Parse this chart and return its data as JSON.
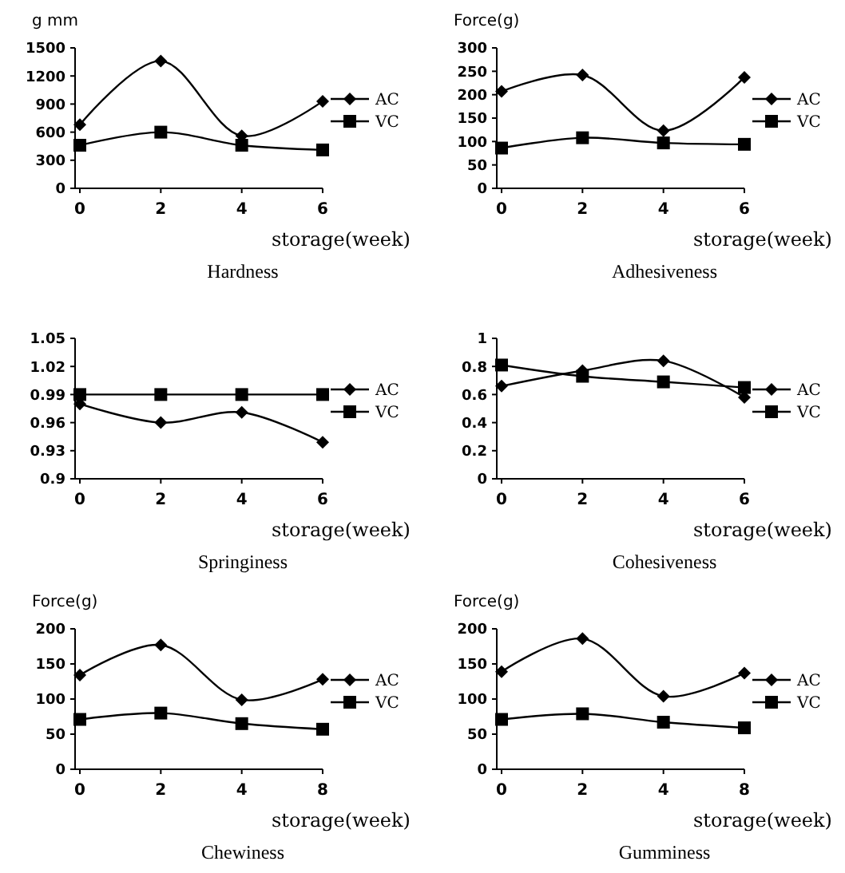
{
  "chart_data": [
    {
      "type": "line",
      "title": "Hardness",
      "xlabel": "storage(week)",
      "ylabel": "g mm",
      "categories": [
        "0",
        "2",
        "4",
        "6"
      ],
      "ylim": [
        0,
        1500
      ],
      "yticks": [
        0,
        300,
        600,
        900,
        1200,
        1500
      ],
      "legend": "right",
      "grid": false,
      "series": [
        {
          "name": "AC",
          "color": "#000000",
          "marker": "diamond",
          "values": [
            680,
            1360,
            560,
            930
          ]
        },
        {
          "name": "VC",
          "color": "#000000",
          "marker": "square",
          "values": [
            460,
            600,
            460,
            410
          ]
        }
      ]
    },
    {
      "type": "line",
      "title": "Adhesiveness",
      "xlabel": "storage(week)",
      "ylabel": "Force(g)",
      "categories": [
        "0",
        "2",
        "4",
        "6"
      ],
      "ylim": [
        0,
        300
      ],
      "yticks": [
        0,
        50,
        100,
        150,
        200,
        250,
        300
      ],
      "legend": "right",
      "grid": false,
      "series": [
        {
          "name": "AC",
          "color": "#000000",
          "marker": "diamond",
          "values": [
            207,
            242,
            123,
            237
          ]
        },
        {
          "name": "VC",
          "color": "#000000",
          "marker": "square",
          "values": [
            86,
            108,
            97,
            94
          ]
        }
      ]
    },
    {
      "type": "line",
      "title": "Springiness",
      "xlabel": "storage(week)",
      "categories": [
        "0",
        "2",
        "4",
        "6"
      ],
      "ylim": [
        0.9,
        1.05
      ],
      "yticks": [
        0.9,
        0.93,
        0.96,
        0.99,
        1.02,
        1.05
      ],
      "legend": "right",
      "grid": false,
      "series": [
        {
          "name": "AC",
          "color": "#000000",
          "marker": "diamond",
          "values": [
            0.98,
            0.96,
            0.971,
            0.939
          ]
        },
        {
          "name": "VC",
          "color": "#000000",
          "marker": "square",
          "values": [
            0.99,
            0.99,
            0.99,
            0.99
          ]
        }
      ]
    },
    {
      "type": "line",
      "title": "Cohesiveness",
      "xlabel": "storage(week)",
      "categories": [
        "0",
        "2",
        "4",
        "6"
      ],
      "ylim": [
        0,
        1
      ],
      "yticks": [
        0,
        0.2,
        0.4,
        0.6,
        0.8,
        1
      ],
      "legend": "right",
      "grid": false,
      "series": [
        {
          "name": "AC",
          "color": "#000000",
          "marker": "diamond",
          "values": [
            0.66,
            0.77,
            0.84,
            0.58
          ]
        },
        {
          "name": "VC",
          "color": "#000000",
          "marker": "square",
          "values": [
            0.81,
            0.73,
            0.69,
            0.65
          ]
        }
      ]
    },
    {
      "type": "line",
      "title": "Chewiness",
      "xlabel": "storage(week)",
      "ylabel": "Force(g)",
      "categories": [
        "0",
        "2",
        "4",
        "8"
      ],
      "ylim": [
        0,
        200
      ],
      "yticks": [
        0,
        50,
        100,
        150,
        200
      ],
      "legend": "right",
      "grid": false,
      "series": [
        {
          "name": "AC",
          "color": "#000000",
          "marker": "diamond",
          "values": [
            134,
            177,
            99,
            128
          ]
        },
        {
          "name": "VC",
          "color": "#000000",
          "marker": "square",
          "values": [
            71,
            80,
            65,
            57
          ]
        }
      ]
    },
    {
      "type": "line",
      "title": "Gumminess",
      "xlabel": "storage(week)",
      "ylabel": "Force(g)",
      "categories": [
        "0",
        "2",
        "4",
        "8"
      ],
      "ylim": [
        0,
        200
      ],
      "yticks": [
        0,
        50,
        100,
        150,
        200
      ],
      "legend": "right",
      "grid": false,
      "series": [
        {
          "name": "AC",
          "color": "#000000",
          "marker": "diamond",
          "values": [
            139,
            186,
            104,
            137
          ]
        },
        {
          "name": "VC",
          "color": "#000000",
          "marker": "square",
          "values": [
            71,
            79,
            67,
            59
          ]
        }
      ]
    }
  ]
}
